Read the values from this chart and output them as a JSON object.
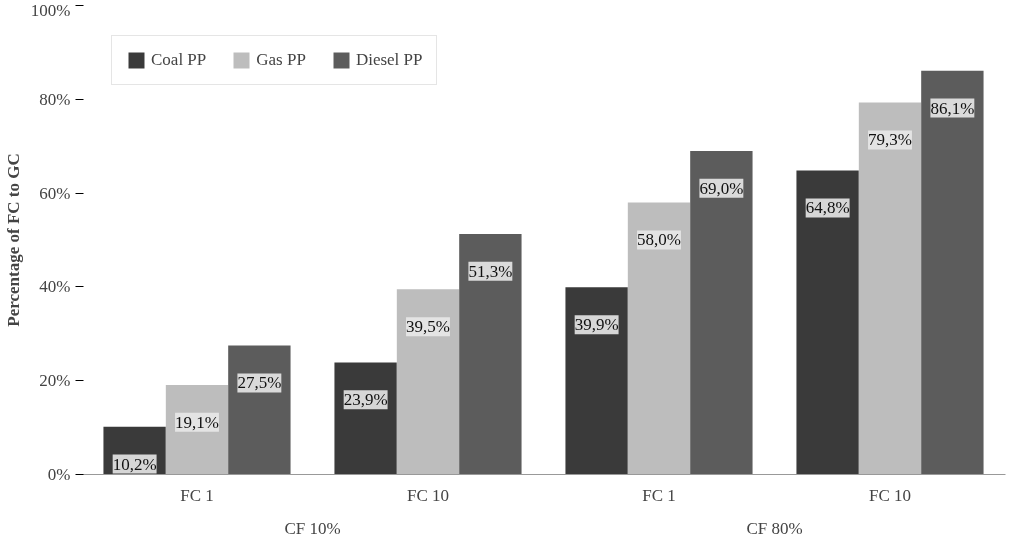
{
  "chart_data": {
    "type": "bar",
    "ylabel": "Percentage of FC to GC",
    "categories": [
      "FC 1",
      "FC 10",
      "FC 1",
      "FC 10"
    ],
    "annotations": [
      "CF 10%",
      "CF 80%"
    ],
    "series": [
      {
        "name": "Coal PP",
        "color": "#3a3a3a",
        "values": [
          10.2,
          23.9,
          39.9,
          64.8
        ],
        "value_labels": [
          "10,2%",
          "23,9%",
          "39,9%",
          "64,8%"
        ]
      },
      {
        "name": "Gas PP",
        "color": "#bdbdbd",
        "values": [
          19.1,
          39.5,
          58.0,
          79.3
        ],
        "value_labels": [
          "19,1%",
          "39,5%",
          "58,0%",
          "79,3%"
        ]
      },
      {
        "name": "Diesel PP",
        "color": "#5c5c5c",
        "values": [
          27.5,
          51.3,
          69.0,
          86.1
        ],
        "value_labels": [
          "27,5%",
          "51,3%",
          "69,0%",
          "86,1%"
        ]
      }
    ],
    "ylim": [
      0,
      100
    ],
    "yticks": [
      {
        "value": 0,
        "label": "0%"
      },
      {
        "value": 20,
        "label": "20%"
      },
      {
        "value": 40,
        "label": "40%"
      },
      {
        "value": 60,
        "label": "60%"
      },
      {
        "value": 80,
        "label": "80%"
      },
      {
        "value": 100,
        "label": "100%"
      }
    ],
    "grid": false,
    "legend": "top left"
  }
}
